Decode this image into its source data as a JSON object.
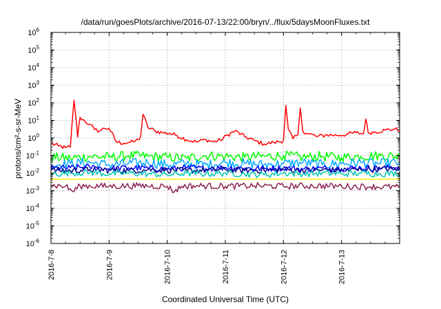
{
  "chart_data": {
    "type": "line",
    "title": "/data/run/goesPlots/archive/2016-07-13/22:00/bryn/../flux/5daysMoonFluxes.txt",
    "xlabel": "Coordinated Universal Time (UTC)",
    "ylabel": "protons/cm²-s-sr-MeV",
    "y_scale": "log",
    "ylim": [
      1e-06,
      1000000.0
    ],
    "y_ticks": [
      {
        "base": "10",
        "exp": "-6",
        "value": 1e-06
      },
      {
        "base": "10",
        "exp": "-5",
        "value": 1e-05
      },
      {
        "base": "10",
        "exp": "-4",
        "value": 0.0001
      },
      {
        "base": "10",
        "exp": "-3",
        "value": 0.001
      },
      {
        "base": "10",
        "exp": "-2",
        "value": 0.01
      },
      {
        "base": "10",
        "exp": "-1",
        "value": 0.1
      },
      {
        "base": "10",
        "exp": "0",
        "value": 1
      },
      {
        "base": "10",
        "exp": "1",
        "value": 10
      },
      {
        "base": "10",
        "exp": "2",
        "value": 100
      },
      {
        "base": "10",
        "exp": "3",
        "value": 1000
      },
      {
        "base": "10",
        "exp": "4",
        "value": 10000
      },
      {
        "base": "10",
        "exp": "5",
        "value": 100000
      },
      {
        "base": "10",
        "exp": "6",
        "value": 1000000
      }
    ],
    "xlim": [
      "2016-07-08",
      "2016-07-14"
    ],
    "x_ticks": [
      {
        "label": "2016-7-8",
        "value": "2016-07-08"
      },
      {
        "label": "2016-7-9",
        "value": "2016-07-09"
      },
      {
        "label": "2016-7-10",
        "value": "2016-07-10"
      },
      {
        "label": "2016-7-11",
        "value": "2016-07-11"
      },
      {
        "label": "2016-7-12",
        "value": "2016-07-12"
      },
      {
        "label": "2016-7-13",
        "value": "2016-07-13"
      }
    ],
    "grid": true,
    "legend": "none",
    "series": [
      {
        "color": "#ff0000",
        "x": [
          "2016-07-08T00:00",
          "2016-07-08T03:00",
          "2016-07-08T06:00",
          "2016-07-08T08:00",
          "2016-07-08T09:30",
          "2016-07-08T10:30",
          "2016-07-08T11:00",
          "2016-07-08T12:00",
          "2016-07-08T14:00",
          "2016-07-08T16:00",
          "2016-07-08T18:00",
          "2016-07-08T20:00",
          "2016-07-08T22:00",
          "2016-07-09T00:00",
          "2016-07-09T03:00",
          "2016-07-09T06:00",
          "2016-07-09T08:00",
          "2016-07-09T10:00",
          "2016-07-09T12:00",
          "2016-07-09T13:00",
          "2016-07-09T14:00",
          "2016-07-09T16:00",
          "2016-07-09T19:00",
          "2016-07-09T22:00",
          "2016-07-10T01:00",
          "2016-07-10T04:00",
          "2016-07-10T08:00",
          "2016-07-10T12:00",
          "2016-07-10T16:00",
          "2016-07-10T19:00",
          "2016-07-10T22:00",
          "2016-07-11T01:00",
          "2016-07-11T04:00",
          "2016-07-11T08:00",
          "2016-07-11T12:00",
          "2016-07-11T16:00",
          "2016-07-11T20:00",
          "2016-07-12T00:00",
          "2016-07-12T01:00",
          "2016-07-12T02:00",
          "2016-07-12T04:00",
          "2016-07-12T06:00",
          "2016-07-12T07:00",
          "2016-07-12T08:00",
          "2016-07-12T10:00",
          "2016-07-12T14:00",
          "2016-07-12T18:00",
          "2016-07-12T22:00",
          "2016-07-13T02:00",
          "2016-07-13T06:00",
          "2016-07-13T09:00",
          "2016-07-13T10:00",
          "2016-07-13T11:00",
          "2016-07-13T14:00",
          "2016-07-13T18:00",
          "2016-07-13T22:00",
          "2016-07-14T00:00"
        ],
        "values": [
          0.5,
          0.35,
          0.28,
          0.3,
          140,
          8,
          1.1,
          15,
          9,
          6,
          3,
          2.5,
          3.5,
          3.5,
          0.6,
          0.5,
          0.55,
          0.6,
          0.8,
          1.2,
          22,
          4,
          2.5,
          2,
          1.8,
          1.4,
          0.8,
          0.6,
          0.8,
          0.6,
          0.75,
          1.5,
          2.5,
          1.2,
          0.7,
          0.45,
          0.55,
          0.7,
          70,
          3,
          0.9,
          1.5,
          50,
          2.5,
          1.8,
          1.2,
          1.5,
          1.4,
          1.6,
          2,
          1.7,
          12,
          2,
          2.2,
          2.8,
          3.2,
          2.5
        ]
      },
      {
        "color": "#00ff00",
        "x": [
          "2016-07-08T00:00",
          "2016-07-08T08:00",
          "2016-07-08T16:00",
          "2016-07-09T00:00",
          "2016-07-09T08:00",
          "2016-07-09T16:00",
          "2016-07-10T00:00",
          "2016-07-10T08:00",
          "2016-07-10T16:00",
          "2016-07-11T00:00",
          "2016-07-11T08:00",
          "2016-07-11T16:00",
          "2016-07-12T00:00",
          "2016-07-12T08:00",
          "2016-07-12T16:00",
          "2016-07-13T00:00",
          "2016-07-13T08:00",
          "2016-07-13T16:00",
          "2016-07-14T00:00"
        ],
        "values": [
          0.08,
          0.07,
          0.09,
          0.08,
          0.1,
          0.09,
          0.08,
          0.07,
          0.1,
          0.09,
          0.08,
          0.09,
          0.1,
          0.08,
          0.09,
          0.08,
          0.09,
          0.1,
          0.09
        ]
      },
      {
        "color": "#00aaff",
        "x": [
          "2016-07-08T00:00",
          "2016-07-08T08:00",
          "2016-07-08T16:00",
          "2016-07-09T00:00",
          "2016-07-09T08:00",
          "2016-07-09T16:00",
          "2016-07-10T00:00",
          "2016-07-10T08:00",
          "2016-07-10T16:00",
          "2016-07-11T00:00",
          "2016-07-11T08:00",
          "2016-07-11T16:00",
          "2016-07-12T00:00",
          "2016-07-12T08:00",
          "2016-07-12T16:00",
          "2016-07-13T00:00",
          "2016-07-13T08:00",
          "2016-07-13T16:00",
          "2016-07-14T00:00"
        ],
        "values": [
          0.03,
          0.035,
          0.04,
          0.03,
          0.035,
          0.04,
          0.03,
          0.035,
          0.03,
          0.04,
          0.035,
          0.03,
          0.035,
          0.04,
          0.03,
          0.035,
          0.04,
          0.035,
          0.04
        ]
      },
      {
        "color": "#0000ff",
        "x": [
          "2016-07-08T00:00",
          "2016-07-08T08:00",
          "2016-07-08T16:00",
          "2016-07-09T00:00",
          "2016-07-09T08:00",
          "2016-07-09T16:00",
          "2016-07-10T00:00",
          "2016-07-10T08:00",
          "2016-07-10T16:00",
          "2016-07-11T00:00",
          "2016-07-11T08:00",
          "2016-07-11T16:00",
          "2016-07-12T00:00",
          "2016-07-12T08:00",
          "2016-07-12T16:00",
          "2016-07-13T00:00",
          "2016-07-13T08:00",
          "2016-07-13T16:00",
          "2016-07-14T00:00"
        ],
        "values": [
          0.018,
          0.02,
          0.022,
          0.018,
          0.02,
          0.019,
          0.017,
          0.02,
          0.018,
          0.021,
          0.019,
          0.018,
          0.02,
          0.017,
          0.019,
          0.018,
          0.02,
          0.019,
          0.021
        ]
      },
      {
        "color": "#00008b",
        "x": [
          "2016-07-08T00:00",
          "2016-07-08T08:00",
          "2016-07-08T16:00",
          "2016-07-09T00:00",
          "2016-07-09T08:00",
          "2016-07-09T16:00",
          "2016-07-10T00:00",
          "2016-07-10T08:00",
          "2016-07-10T16:00",
          "2016-07-11T00:00",
          "2016-07-11T08:00",
          "2016-07-11T16:00",
          "2016-07-12T00:00",
          "2016-07-12T08:00",
          "2016-07-12T16:00",
          "2016-07-13T00:00",
          "2016-07-13T08:00",
          "2016-07-13T16:00",
          "2016-07-14T00:00"
        ],
        "values": [
          0.015,
          0.014,
          0.016,
          0.015,
          0.014,
          0.016,
          0.015,
          0.014,
          0.015,
          0.016,
          0.014,
          0.015,
          0.016,
          0.014,
          0.015,
          0.015,
          0.016,
          0.017,
          0.018
        ]
      },
      {
        "color": "#00c8b4",
        "x": [
          "2016-07-08T00:00",
          "2016-07-08T08:00",
          "2016-07-08T16:00",
          "2016-07-09T00:00",
          "2016-07-09T08:00",
          "2016-07-09T16:00",
          "2016-07-10T00:00",
          "2016-07-10T08:00",
          "2016-07-10T16:00",
          "2016-07-11T00:00",
          "2016-07-11T08:00",
          "2016-07-11T16:00",
          "2016-07-12T00:00",
          "2016-07-12T08:00",
          "2016-07-12T16:00",
          "2016-07-13T00:00",
          "2016-07-13T08:00",
          "2016-07-13T16:00",
          "2016-07-14T00:00"
        ],
        "values": [
          0.009,
          0.01,
          0.011,
          0.009,
          0.01,
          0.009,
          0.008,
          0.01,
          0.009,
          0.01,
          0.009,
          0.008,
          0.01,
          0.009,
          0.01,
          0.009,
          0.01,
          0.009,
          0.01
        ]
      },
      {
        "color": "#ffee00",
        "x": [
          "2016-07-08T00:00",
          "2016-07-09T00:00",
          "2016-07-10T00:00",
          "2016-07-11T00:00",
          "2016-07-12T00:00",
          "2016-07-13T00:00",
          "2016-07-14T00:00"
        ],
        "values": [
          0.0045,
          0.0045,
          0.0045,
          0.0045,
          0.0045,
          0.0045,
          0.0045
        ]
      },
      {
        "color": "#8b2252",
        "x": [
          "2016-07-08T00:00",
          "2016-07-08T06:00",
          "2016-07-08T09:00",
          "2016-07-08T12:00",
          "2016-07-09T00:00",
          "2016-07-09T12:00",
          "2016-07-10T00:00",
          "2016-07-10T03:00",
          "2016-07-10T06:00",
          "2016-07-10T12:00",
          "2016-07-11T00:00",
          "2016-07-11T12:00",
          "2016-07-12T00:00",
          "2016-07-12T12:00",
          "2016-07-13T00:00",
          "2016-07-13T12:00",
          "2016-07-14T00:00"
        ],
        "values": [
          0.002,
          0.0018,
          0.0009,
          0.0019,
          0.0018,
          0.0019,
          0.0018,
          0.0009,
          0.0018,
          0.0019,
          0.0018,
          0.0019,
          0.0018,
          0.0019,
          0.0018,
          0.0017,
          0.0016
        ]
      }
    ]
  }
}
